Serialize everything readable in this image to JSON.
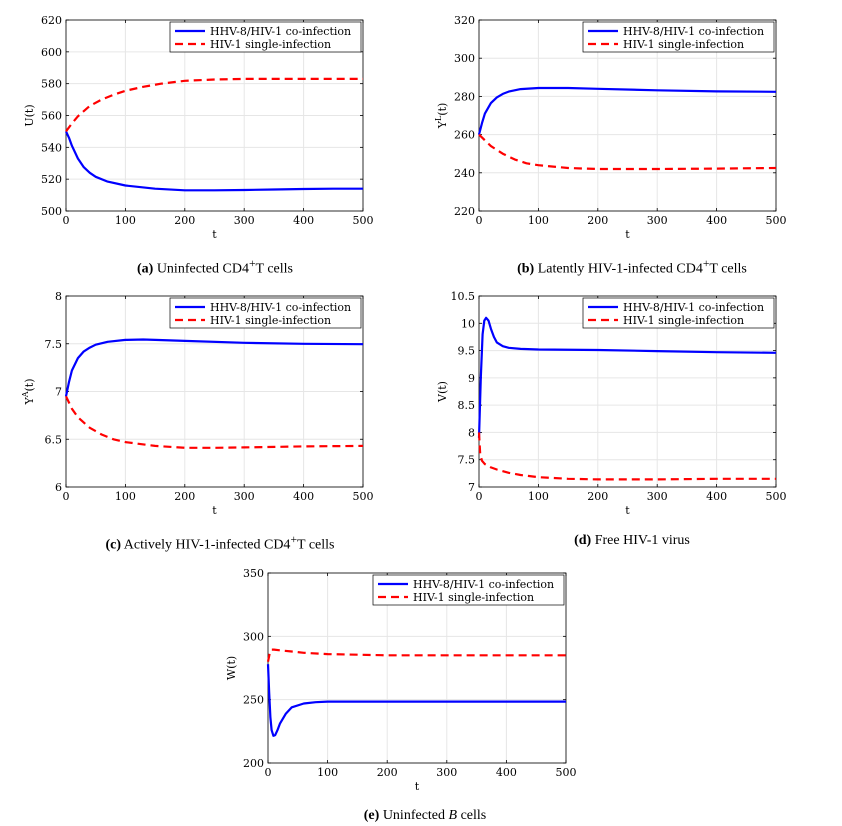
{
  "legend": {
    "coinfection": "HHV-8/HIV-1 co-infection",
    "single": "HIV-1 single-infection"
  },
  "colors": {
    "coinfection": "#0000ff",
    "single": "#ff0000",
    "grid": "#e6e6e6"
  },
  "chart_data": [
    {
      "id": "a",
      "type": "line",
      "title": "Uninfected CD4+T cells",
      "xlabel": "t",
      "ylabel": "U(t)",
      "ylabel_main": "U",
      "ylabel_sup": "",
      "xlim": [
        0,
        500
      ],
      "ylim": [
        500,
        620
      ],
      "xticks": [
        0,
        100,
        200,
        300,
        400,
        500
      ],
      "yticks": [
        500,
        520,
        540,
        560,
        580,
        600,
        620
      ],
      "caption": {
        "letter": "(a)",
        "pre": " Uninfected CD4",
        "sup": "+",
        "post": "T cells",
        "italic": "",
        "tail": ""
      },
      "series": [
        {
          "name": "HHV-8/HIV-1 co-infection",
          "style": "solid",
          "x": [
            0,
            5,
            10,
            20,
            30,
            40,
            50,
            70,
            100,
            150,
            200,
            250,
            300,
            350,
            400,
            450,
            500
          ],
          "y": [
            550,
            546,
            541,
            533,
            527.5,
            524,
            521.5,
            518.5,
            516,
            514,
            513,
            513,
            513.2,
            513.5,
            513.8,
            514,
            514
          ]
        },
        {
          "name": "HIV-1 single-infection",
          "style": "dashed",
          "x": [
            0,
            10,
            20,
            40,
            60,
            80,
            100,
            130,
            160,
            200,
            250,
            300,
            350,
            400,
            450,
            500
          ],
          "y": [
            550,
            555,
            559.5,
            566,
            570,
            573,
            575.5,
            578,
            580,
            581.8,
            582.6,
            583,
            583,
            583,
            583,
            583
          ]
        }
      ]
    },
    {
      "id": "b",
      "type": "line",
      "title": "Latently HIV-1-infected CD4+T cells",
      "xlabel": "t",
      "ylabel": "Y^L(t)",
      "ylabel_main": "Y",
      "ylabel_sup": "L",
      "xlim": [
        0,
        500
      ],
      "ylim": [
        220,
        320
      ],
      "xticks": [
        0,
        100,
        200,
        300,
        400,
        500
      ],
      "yticks": [
        220,
        240,
        260,
        280,
        300,
        320
      ],
      "caption": {
        "letter": "(b)",
        "pre": " Latently HIV-1-infected CD4",
        "sup": "+",
        "post": "T cells",
        "italic": "",
        "tail": ""
      },
      "series": [
        {
          "name": "HHV-8/HIV-1 co-infection",
          "style": "solid",
          "x": [
            0,
            5,
            10,
            20,
            30,
            40,
            50,
            70,
            100,
            150,
            200,
            300,
            400,
            500
          ],
          "y": [
            260,
            266,
            271,
            276.5,
            279.5,
            281.3,
            282.5,
            283.8,
            284.4,
            284.4,
            284,
            283.2,
            282.6,
            282.4
          ]
        },
        {
          "name": "HIV-1 single-infection",
          "style": "dashed",
          "x": [
            0,
            10,
            20,
            40,
            60,
            80,
            100,
            150,
            200,
            250,
            300,
            400,
            500
          ],
          "y": [
            260,
            257,
            254,
            250,
            247,
            245,
            244,
            242.5,
            242,
            242,
            242,
            242.2,
            242.5
          ]
        }
      ]
    },
    {
      "id": "c",
      "type": "line",
      "title": "Actively HIV-1-infected CD4+T cells",
      "xlabel": "t",
      "ylabel": "Y^A(t)",
      "ylabel_main": "Y",
      "ylabel_sup": "A",
      "xlim": [
        0,
        500
      ],
      "ylim": [
        6,
        8
      ],
      "xticks": [
        0,
        100,
        200,
        300,
        400,
        500
      ],
      "yticks": [
        6,
        6.5,
        7,
        7.5,
        8
      ],
      "caption": {
        "letter": "(c)",
        "pre": " Actively HIV-1-infected CD4",
        "sup": "+",
        "post": "T cells",
        "italic": "",
        "tail": ""
      },
      "series": [
        {
          "name": "HHV-8/HIV-1 co-infection",
          "style": "solid",
          "x": [
            0,
            5,
            10,
            20,
            30,
            40,
            50,
            70,
            100,
            130,
            150,
            200,
            300,
            400,
            500
          ],
          "y": [
            6.95,
            7.1,
            7.22,
            7.35,
            7.42,
            7.46,
            7.49,
            7.52,
            7.54,
            7.545,
            7.54,
            7.53,
            7.51,
            7.5,
            7.495
          ]
        },
        {
          "name": "HIV-1 single-infection",
          "style": "dashed",
          "x": [
            0,
            10,
            20,
            40,
            60,
            80,
            100,
            150,
            200,
            250,
            300,
            400,
            500
          ],
          "y": [
            6.95,
            6.82,
            6.73,
            6.62,
            6.55,
            6.5,
            6.47,
            6.43,
            6.41,
            6.41,
            6.415,
            6.425,
            6.43
          ]
        }
      ]
    },
    {
      "id": "d",
      "type": "line",
      "title": "Free HIV-1 virus",
      "xlabel": "t",
      "ylabel": "V(t)",
      "ylabel_main": "V",
      "ylabel_sup": "",
      "xlim": [
        0,
        500
      ],
      "ylim": [
        7,
        10.5
      ],
      "xticks": [
        0,
        100,
        200,
        300,
        400,
        500
      ],
      "yticks": [
        7,
        7.5,
        8,
        8.5,
        9,
        9.5,
        10,
        10.5
      ],
      "caption": {
        "letter": "(d)",
        "pre": " Free HIV-1 virus",
        "sup": "",
        "post": "",
        "italic": "",
        "tail": ""
      },
      "series": [
        {
          "name": "HHV-8/HIV-1 co-infection",
          "style": "solid",
          "x": [
            0,
            3,
            6,
            9,
            12,
            16,
            20,
            25,
            30,
            40,
            50,
            70,
            100,
            200,
            300,
            400,
            500
          ],
          "y": [
            7.9,
            9.0,
            9.8,
            10.05,
            10.1,
            10.05,
            9.9,
            9.75,
            9.65,
            9.58,
            9.55,
            9.53,
            9.52,
            9.51,
            9.49,
            9.47,
            9.46
          ]
        },
        {
          "name": "HIV-1 single-infection",
          "style": "dashed",
          "x": [
            0,
            2,
            5,
            10,
            20,
            30,
            50,
            70,
            100,
            150,
            200,
            300,
            400,
            500
          ],
          "y": [
            8.0,
            7.6,
            7.48,
            7.42,
            7.36,
            7.32,
            7.26,
            7.22,
            7.18,
            7.15,
            7.14,
            7.14,
            7.15,
            7.15
          ]
        }
      ]
    },
    {
      "id": "e",
      "type": "line",
      "title": "Uninfected B cells",
      "xlabel": "t",
      "ylabel": "W(t)",
      "ylabel_main": "W",
      "ylabel_sup": "",
      "xlim": [
        0,
        500
      ],
      "ylim": [
        200,
        350
      ],
      "xticks": [
        0,
        100,
        200,
        300,
        400,
        500
      ],
      "yticks": [
        200,
        250,
        300,
        350
      ],
      "caption": {
        "letter": "(e)",
        "pre": " Uninfected ",
        "sup": "",
        "post": "",
        "italic": "B",
        "tail": " cells"
      },
      "series": [
        {
          "name": "HHV-8/HIV-1 co-infection",
          "style": "solid",
          "x": [
            0,
            2,
            4,
            6,
            9,
            12,
            16,
            20,
            30,
            40,
            60,
            80,
            100,
            150,
            200,
            300,
            400,
            500
          ],
          "y": [
            278,
            255,
            236,
            226,
            221.5,
            222,
            226,
            231,
            239,
            244,
            247,
            248,
            248.5,
            248.5,
            248.5,
            248.5,
            248.5,
            248.5
          ]
        },
        {
          "name": "HIV-1 single-infection",
          "style": "dashed",
          "x": [
            0,
            3,
            6,
            10,
            20,
            40,
            60,
            100,
            150,
            200,
            300,
            400,
            500
          ],
          "y": [
            280,
            287,
            289.5,
            289.5,
            289,
            288,
            287,
            286,
            285.5,
            285,
            285,
            285,
            285
          ]
        }
      ]
    }
  ]
}
